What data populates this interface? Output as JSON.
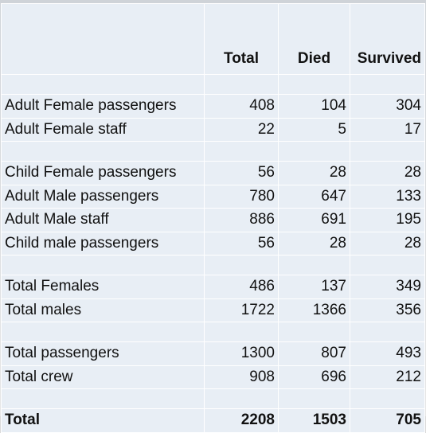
{
  "columns": [
    "",
    "Total",
    "Died",
    "Survived"
  ],
  "rows": [
    {
      "type": "spacer"
    },
    {
      "type": "data",
      "label": "Adult Female passengers",
      "total": "408",
      "died": "104",
      "survived": "304"
    },
    {
      "type": "data",
      "label": "Adult Female staff",
      "total": "22",
      "died": "5",
      "survived": "17"
    },
    {
      "type": "spacer"
    },
    {
      "type": "data",
      "label": "Child Female passengers",
      "total": "56",
      "died": "28",
      "survived": "28"
    },
    {
      "type": "data",
      "label": "Adult Male passengers",
      "total": "780",
      "died": "647",
      "survived": "133"
    },
    {
      "type": "data",
      "label": "Adult Male staff",
      "total": "886",
      "died": "691",
      "survived": "195"
    },
    {
      "type": "data",
      "label": "Child male passengers",
      "total": "56",
      "died": "28",
      "survived": "28"
    },
    {
      "type": "spacer"
    },
    {
      "type": "data",
      "label": "Total Females",
      "total": "486",
      "died": "137",
      "survived": "349"
    },
    {
      "type": "data",
      "label": "Total males",
      "total": "1722",
      "died": "1366",
      "survived": "356"
    },
    {
      "type": "spacer"
    },
    {
      "type": "data",
      "label": "Total passengers",
      "total": "1300",
      "died": "807",
      "survived": "493"
    },
    {
      "type": "data",
      "label": "Total crew",
      "total": "908",
      "died": "696",
      "survived": "212"
    },
    {
      "type": "spacer"
    },
    {
      "type": "bold",
      "label": "Total",
      "total": "2208",
      "died": "1503",
      "survived": "705"
    }
  ]
}
